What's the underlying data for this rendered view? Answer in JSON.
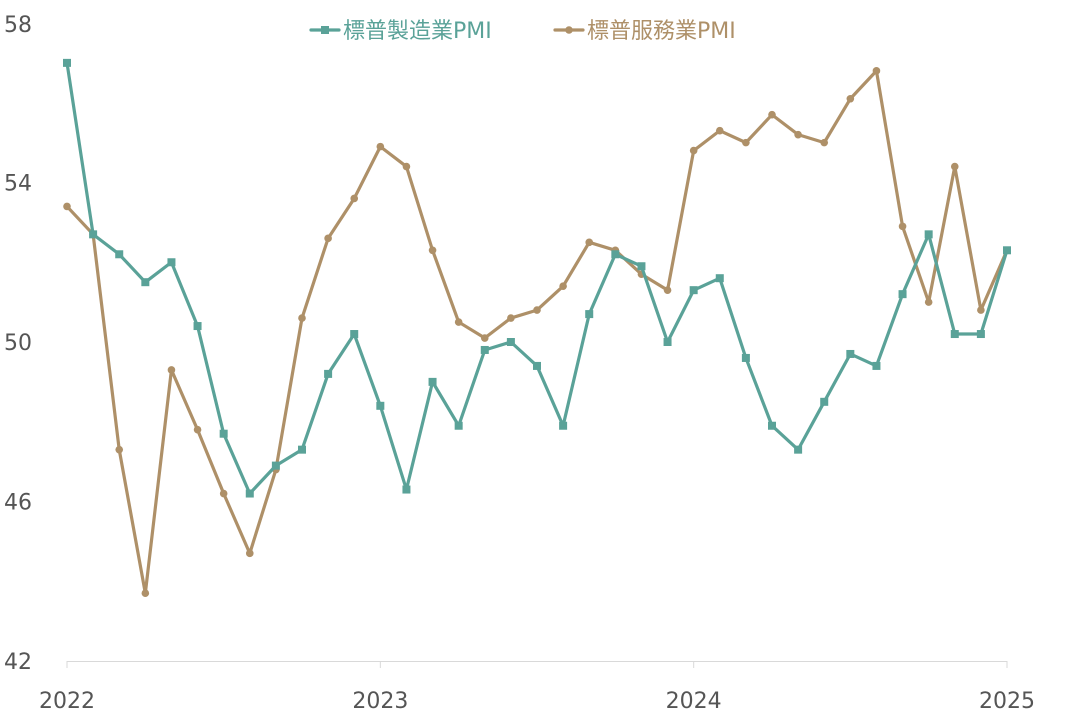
{
  "chart_data": {
    "type": "line",
    "title": "",
    "xlabel": "",
    "ylabel": "",
    "ylim": [
      42,
      58
    ],
    "y_ticks": [
      42,
      46,
      50,
      54,
      58
    ],
    "x_tick_labels": [
      "2022",
      "2023",
      "2024",
      "2025"
    ],
    "x_start": "2022-01",
    "x_end": "2025-01",
    "grid": false,
    "legend": "top-center",
    "series": [
      {
        "name": "標普製造業PMI",
        "color": "#5aa298",
        "marker": "square",
        "values": [
          57.0,
          52.7,
          52.2,
          51.5,
          52.0,
          50.4,
          47.7,
          46.2,
          46.9,
          47.3,
          49.2,
          50.2,
          48.4,
          46.3,
          49.0,
          47.9,
          49.8,
          50.0,
          49.4,
          47.9,
          50.7,
          52.2,
          51.9,
          50.0,
          51.3,
          51.6,
          49.6,
          47.9,
          47.3,
          48.5,
          49.7,
          49.4,
          51.2,
          52.7,
          50.2,
          50.2,
          52.3
        ]
      },
      {
        "name": "標普服務業PMI",
        "color": "#ae9068",
        "marker": "circle",
        "values": [
          53.4,
          52.7,
          47.3,
          43.7,
          49.3,
          47.8,
          46.2,
          44.7,
          46.8,
          50.6,
          52.6,
          53.6,
          54.9,
          54.4,
          52.3,
          50.5,
          50.1,
          50.6,
          50.8,
          51.4,
          52.5,
          52.3,
          51.7,
          51.3,
          54.8,
          55.3,
          55.0,
          55.7,
          55.2,
          55.0,
          56.1,
          56.8,
          52.9,
          51.0,
          54.4,
          50.8,
          52.3
        ]
      }
    ]
  }
}
